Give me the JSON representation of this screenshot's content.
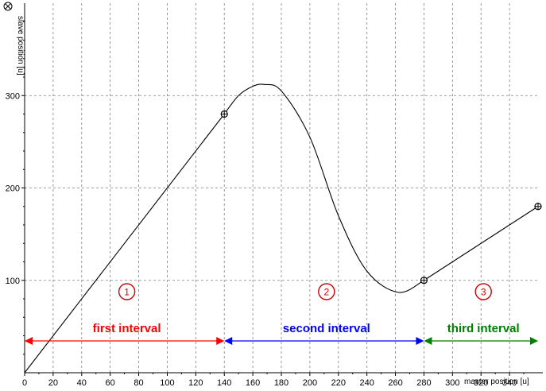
{
  "chart_data": {
    "type": "line",
    "title": "",
    "xlabel": "master position [u]",
    "ylabel": "slave position [u]",
    "xlim": [
      0,
      360
    ],
    "ylim": [
      0,
      400
    ],
    "x_ticks": [
      0,
      20,
      40,
      60,
      80,
      100,
      120,
      140,
      160,
      180,
      200,
      220,
      240,
      260,
      280,
      300,
      320,
      340
    ],
    "y_ticks": [
      100,
      200,
      300
    ],
    "grid": true,
    "series": [
      {
        "color": "#000000",
        "x": [
          0,
          140,
          150,
          160,
          168,
          180,
          200,
          220,
          240,
          262,
          280,
          360
        ],
        "y": [
          0,
          280,
          300,
          310,
          312,
          305,
          255,
          170,
          110,
          87,
          100,
          180
        ]
      }
    ],
    "points": [
      {
        "x": 140,
        "y": 280
      },
      {
        "x": 280,
        "y": 100
      },
      {
        "x": 360,
        "y": 180
      }
    ],
    "intervals": [
      {
        "number": "1",
        "label": "first interval",
        "x_start": 0,
        "x_end": 140,
        "color": "#ff0000"
      },
      {
        "number": "2",
        "label": "second interval",
        "x_start": 140,
        "x_end": 280,
        "color": "#0000ff"
      },
      {
        "number": "3",
        "label": "third interval",
        "x_start": 280,
        "x_end": 360,
        "color": "#008000"
      }
    ]
  },
  "colors": {
    "grid": "#808080",
    "marker_circle": "#cc0000"
  },
  "icons": {
    "corner": "close-icon"
  }
}
